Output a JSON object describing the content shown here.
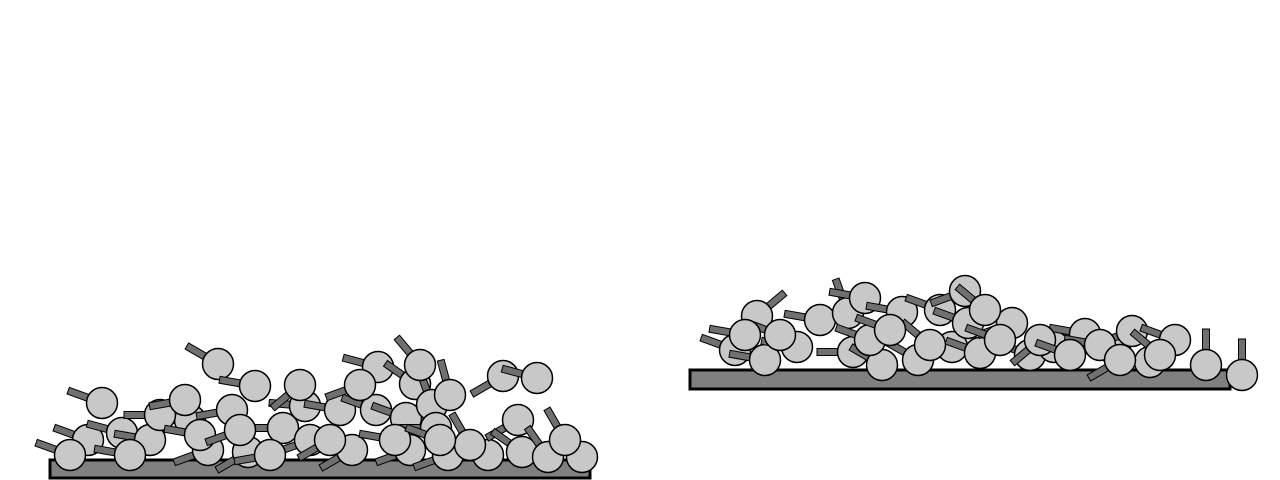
{
  "colors": {
    "background": "#ffffff",
    "substrate": "#808080",
    "head": "#c8c8c8",
    "tail": "#707070",
    "outline": "#000000"
  },
  "panels": [
    {
      "name": "left-panel",
      "substrate": "gray-substrate-slab",
      "molecule": "lipid-molecule",
      "count": 46
    },
    {
      "name": "right-panel",
      "substrate": "gray-substrate-slab",
      "molecule": "lipid-molecule",
      "count": 38
    }
  ]
}
